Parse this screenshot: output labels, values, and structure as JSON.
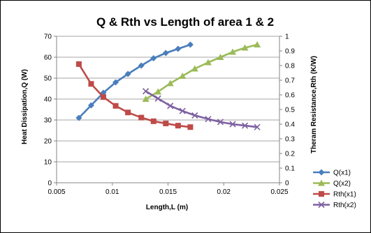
{
  "chart_data": {
    "type": "line",
    "title": "Q & Rth vs Length of area 1 & 2",
    "xlabel": "Length,L (m)",
    "ylabel": "Heat Dissipation,Q (W)",
    "y2label": "Theram Resistance,Rth (K/W)",
    "xlim": [
      0.005,
      0.025
    ],
    "ylim": [
      0,
      70
    ],
    "y2lim": [
      0,
      1
    ],
    "x_ticks": [
      "0.005",
      "0.01",
      "0.015",
      "0.02",
      "0.025"
    ],
    "y_ticks": [
      "0",
      "10",
      "20",
      "30",
      "40",
      "50",
      "60",
      "70"
    ],
    "y2_ticks": [
      "0",
      "0.1",
      "0.2",
      "0.3",
      "0.4",
      "0.5",
      "0.6",
      "0.7",
      "0.8",
      "0.9",
      "1"
    ],
    "grid": "horizontal major gridlines on left axis",
    "legend_position": "right-bottom",
    "series": [
      {
        "name": "Q(x1)",
        "axis": "left",
        "color": "#4a7ebb",
        "marker": "diamond",
        "x": [
          0.007,
          0.0081,
          0.0092,
          0.0103,
          0.0114,
          0.0126,
          0.0137,
          0.0148,
          0.0159,
          0.017
        ],
        "y": [
          31,
          37,
          43,
          48,
          52,
          56,
          59.5,
          62,
          64,
          66
        ]
      },
      {
        "name": "Q(x2)",
        "axis": "left",
        "color": "#9bbb59",
        "marker": "triangle",
        "x": [
          0.013,
          0.0141,
          0.0152,
          0.0163,
          0.0174,
          0.0186,
          0.0197,
          0.0208,
          0.0219,
          0.023
        ],
        "y": [
          40,
          43.5,
          47.5,
          51,
          54.5,
          57.5,
          60,
          62.5,
          64.5,
          66
        ]
      },
      {
        "name": "Rth(x1)",
        "axis": "right",
        "color": "#be4b48",
        "marker": "square",
        "x": [
          0.007,
          0.0081,
          0.0092,
          0.0103,
          0.0114,
          0.0126,
          0.0137,
          0.0148,
          0.0159,
          0.017
        ],
        "y": [
          0.81,
          0.675,
          0.585,
          0.525,
          0.48,
          0.445,
          0.42,
          0.405,
          0.39,
          0.38
        ]
      },
      {
        "name": "Rth(x2)",
        "axis": "right",
        "color": "#7d60a0",
        "marker": "x",
        "x": [
          0.013,
          0.0141,
          0.0152,
          0.0163,
          0.0174,
          0.0186,
          0.0197,
          0.0208,
          0.0219,
          0.023
        ],
        "y": [
          0.625,
          0.575,
          0.525,
          0.49,
          0.46,
          0.435,
          0.415,
          0.4,
          0.39,
          0.38
        ]
      }
    ]
  }
}
